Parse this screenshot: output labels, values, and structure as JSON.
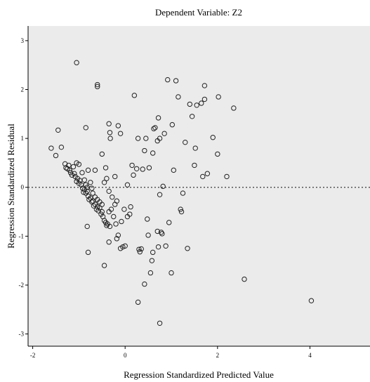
{
  "chart_data": {
    "type": "scatter",
    "title": "Dependent Variable: Z2",
    "xlabel": "Regression Standardized Predicted Value",
    "ylabel": "Regression Standardized Residual",
    "xlim": [
      -2.1,
      5.3
    ],
    "ylim": [
      -3.25,
      3.3
    ],
    "x_ticks": [
      -2,
      0,
      2,
      4
    ],
    "y_ticks": [
      -3,
      -2,
      -1,
      0,
      1,
      2,
      3
    ],
    "reference_line_y": 0,
    "grid": false,
    "colors": {
      "plot_background": "#ebebeb",
      "point_stroke": "#222222",
      "reference_line": "#555555"
    },
    "points": [
      [
        -1.6,
        0.8
      ],
      [
        -1.5,
        0.65
      ],
      [
        -1.45,
        1.17
      ],
      [
        -1.38,
        0.82
      ],
      [
        -1.3,
        0.48
      ],
      [
        -1.28,
        0.4
      ],
      [
        -1.25,
        0.38
      ],
      [
        -1.22,
        0.45
      ],
      [
        -1.2,
        0.35
      ],
      [
        -1.18,
        0.3
      ],
      [
        -1.15,
        0.25
      ],
      [
        -1.12,
        0.42
      ],
      [
        -1.1,
        0.28
      ],
      [
        -1.08,
        0.22
      ],
      [
        -1.05,
        0.12
      ],
      [
        -1.03,
        0.18
      ],
      [
        -1.0,
        0.08
      ],
      [
        -0.98,
        0.14
      ],
      [
        -0.95,
        0.05
      ],
      [
        -0.92,
        -0.02
      ],
      [
        -0.9,
        -0.1
      ],
      [
        -0.88,
        -0.05
      ],
      [
        -0.85,
        -0.12
      ],
      [
        -0.82,
        -0.08
      ],
      [
        -0.8,
        -0.18
      ],
      [
        -0.78,
        -0.25
      ],
      [
        -0.75,
        -0.22
      ],
      [
        -0.72,
        -0.3
      ],
      [
        -0.7,
        -0.28
      ],
      [
        -0.68,
        -0.38
      ],
      [
        -0.65,
        -0.35
      ],
      [
        -0.62,
        -0.45
      ],
      [
        -0.6,
        -0.4
      ],
      [
        -0.58,
        -0.48
      ],
      [
        -0.55,
        -0.42
      ],
      [
        -0.52,
        -0.55
      ],
      [
        -0.5,
        -0.5
      ],
      [
        -0.48,
        -0.6
      ],
      [
        -0.45,
        -0.68
      ],
      [
        -0.42,
        -0.72
      ],
      [
        -0.4,
        -0.78
      ],
      [
        -0.38,
        -0.75
      ],
      [
        -0.35,
        -0.5
      ],
      [
        -0.33,
        -0.8
      ],
      [
        -1.05,
        0.5
      ],
      [
        -1.0,
        0.47
      ],
      [
        -0.93,
        0.3
      ],
      [
        -0.88,
        0.15
      ],
      [
        -0.85,
        0.05
      ],
      [
        -0.82,
        0.0
      ],
      [
        -0.8,
        0.35
      ],
      [
        -0.75,
        0.1
      ],
      [
        -0.72,
        -0.02
      ],
      [
        -0.7,
        -0.12
      ],
      [
        -0.65,
        -0.2
      ],
      [
        -0.6,
        -0.25
      ],
      [
        -0.55,
        -0.3
      ],
      [
        -0.5,
        -0.35
      ],
      [
        -0.45,
        0.1
      ],
      [
        -0.42,
        0.4
      ],
      [
        -0.4,
        0.18
      ],
      [
        -0.35,
        -0.08
      ],
      [
        -0.3,
        -0.45
      ],
      [
        -0.28,
        -0.2
      ],
      [
        -0.25,
        -0.6
      ],
      [
        -0.22,
        -0.35
      ],
      [
        -0.2,
        -0.75
      ],
      [
        -0.18,
        -0.28
      ],
      [
        -1.05,
        2.55
      ],
      [
        -0.6,
        2.1
      ],
      [
        -0.6,
        2.06
      ],
      [
        -0.85,
        1.22
      ],
      [
        -0.65,
        0.35
      ],
      [
        -0.5,
        0.68
      ],
      [
        -0.35,
        1.3
      ],
      [
        -0.33,
        1.12
      ],
      [
        -0.32,
        1.0
      ],
      [
        -0.22,
        0.22
      ],
      [
        -0.15,
        1.26
      ],
      [
        -0.1,
        1.1
      ],
      [
        -0.82,
        -0.8
      ],
      [
        -0.8,
        -1.33
      ],
      [
        -0.45,
        -1.6
      ],
      [
        -0.35,
        -1.12
      ],
      [
        -0.15,
        -0.98
      ],
      [
        -0.18,
        -1.05
      ],
      [
        -0.1,
        -1.25
      ],
      [
        -0.05,
        -1.22
      ],
      [
        0.0,
        -1.2
      ],
      [
        0.05,
        -0.6
      ],
      [
        0.1,
        -0.55
      ],
      [
        0.12,
        -0.4
      ],
      [
        0.2,
        1.88
      ],
      [
        0.25,
        0.38
      ],
      [
        0.28,
        1.0
      ],
      [
        0.3,
        -1.27
      ],
      [
        0.32,
        -1.32
      ],
      [
        0.35,
        -1.26
      ],
      [
        0.38,
        0.37
      ],
      [
        0.42,
        0.75
      ],
      [
        0.45,
        1.0
      ],
      [
        0.48,
        -0.65
      ],
      [
        0.5,
        -0.98
      ],
      [
        0.52,
        0.4
      ],
      [
        0.55,
        -1.75
      ],
      [
        0.58,
        -1.5
      ],
      [
        0.6,
        -1.33
      ],
      [
        0.62,
        1.2
      ],
      [
        0.65,
        1.22
      ],
      [
        0.7,
        0.95
      ],
      [
        0.72,
        1.42
      ],
      [
        0.75,
        1.0
      ],
      [
        0.78,
        -0.92
      ],
      [
        0.8,
        -0.95
      ],
      [
        0.82,
        0.02
      ],
      [
        0.85,
        1.1
      ],
      [
        0.88,
        -1.2
      ],
      [
        0.92,
        2.2
      ],
      [
        0.95,
        -0.72
      ],
      [
        1.0,
        -1.75
      ],
      [
        1.02,
        1.28
      ],
      [
        1.05,
        0.35
      ],
      [
        1.1,
        2.18
      ],
      [
        1.15,
        1.85
      ],
      [
        1.2,
        -0.45
      ],
      [
        1.22,
        -0.5
      ],
      [
        1.25,
        -0.12
      ],
      [
        1.3,
        0.92
      ],
      [
        1.35,
        -1.25
      ],
      [
        1.4,
        1.7
      ],
      [
        1.45,
        1.45
      ],
      [
        1.5,
        0.45
      ],
      [
        1.52,
        0.8
      ],
      [
        1.55,
        1.68
      ],
      [
        1.65,
        1.72
      ],
      [
        1.68,
        0.22
      ],
      [
        1.72,
        2.08
      ],
      [
        1.72,
        1.8
      ],
      [
        1.78,
        0.28
      ],
      [
        1.9,
        1.02
      ],
      [
        2.0,
        0.68
      ],
      [
        2.02,
        1.85
      ],
      [
        2.2,
        0.22
      ],
      [
        2.35,
        1.62
      ],
      [
        2.58,
        -1.88
      ],
      [
        4.03,
        -2.32
      ],
      [
        0.28,
        -2.35
      ],
      [
        0.42,
        -1.98
      ],
      [
        0.75,
        -2.78
      ],
      [
        0.72,
        -1.22
      ],
      [
        0.7,
        -0.9
      ],
      [
        0.75,
        -0.15
      ],
      [
        0.6,
        0.7
      ],
      [
        0.18,
        0.25
      ],
      [
        0.15,
        0.45
      ],
      [
        0.05,
        0.05
      ],
      [
        -0.02,
        -0.45
      ],
      [
        -0.08,
        -0.7
      ]
    ]
  }
}
